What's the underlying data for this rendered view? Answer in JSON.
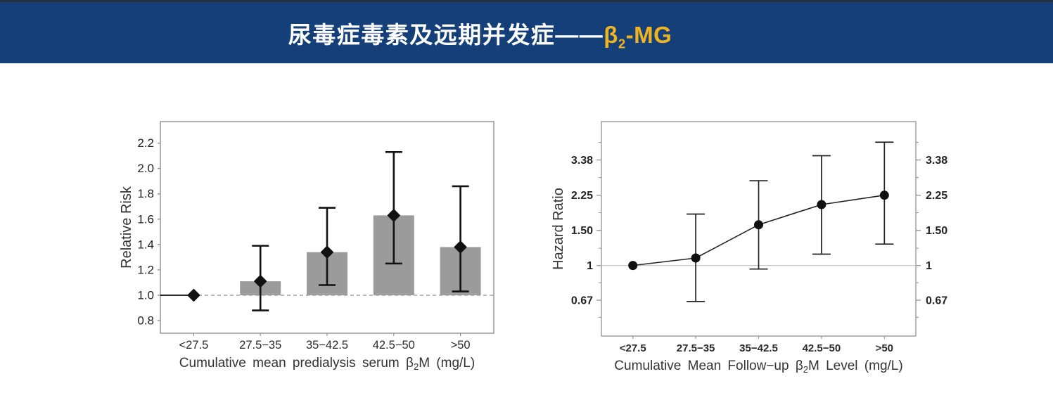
{
  "header": {
    "title_main": "尿毒症毒素及远期并发症——",
    "title_beta": "β",
    "title_beta_sub": "2",
    "title_rest": "-MG",
    "bg_color": "#153f78",
    "highlight_color": "#f0b41e",
    "title_color": "#ffffff"
  },
  "chart_data": [
    {
      "type": "bar",
      "name": "relative-risk-vs-predialysis-b2m",
      "ylabel": "Relative Risk",
      "xlabel_parts": [
        "Cumulative mean predialysis serum β",
        "2",
        "M (mg/L)"
      ],
      "categories": [
        "<27.5",
        "27.5−35",
        "35−42.5",
        "42.5−50",
        ">50"
      ],
      "values": [
        1.0,
        1.11,
        1.34,
        1.63,
        1.38
      ],
      "ci_low": [
        null,
        0.88,
        1.08,
        1.25,
        1.03
      ],
      "ci_high": [
        null,
        1.39,
        1.69,
        2.13,
        1.86
      ],
      "baseline": 1.0,
      "scale": "linear",
      "ylim": [
        0.7,
        2.37
      ],
      "yticks": [
        0.8,
        1.0,
        1.2,
        1.4,
        1.6,
        1.8,
        2.0,
        2.2
      ],
      "ytick_labels": [
        "0.8",
        "1.0",
        "1.2",
        "1.4",
        "1.6",
        "1.8",
        "2.0",
        "2.2"
      ],
      "reference_line": {
        "value": 1.0,
        "style": "dashed"
      },
      "marker": "diamond",
      "bar_color": "#9b9b9b",
      "error_color": "#111111",
      "frame_color": "#8f8f8f",
      "grid": false,
      "legend": "none"
    },
    {
      "type": "line",
      "name": "hazard-ratio-vs-followup-b2m",
      "ylabel": "Hazard Ratio",
      "xlabel_parts": [
        "Cumulative Mean Follow−up β",
        "2",
        "M Level (mg/L)"
      ],
      "categories": [
        "<27.5",
        "27.5−35",
        "35−42.5",
        "42.5−50",
        ">50"
      ],
      "values": [
        1.0,
        1.09,
        1.6,
        2.02,
        2.25
      ],
      "ci_low": [
        null,
        0.66,
        0.96,
        1.14,
        1.28
      ],
      "ci_high": [
        null,
        1.81,
        2.66,
        3.55,
        4.15
      ],
      "baseline": 1.0,
      "scale": "log",
      "ylim": [
        0.443,
        5.26
      ],
      "yticks": [
        0.67,
        1,
        1.5,
        2.25,
        3.38
      ],
      "ytick_labels": [
        "0.67",
        "1",
        "1.50",
        "2.25",
        "3.38"
      ],
      "minor_ticks": [
        0.55,
        0.82,
        1.22,
        1.84,
        2.76,
        4.14
      ],
      "reference_line": {
        "value": 1.0,
        "style": "solid"
      },
      "marker": "circle",
      "line_color": "#222222",
      "error_color": "#222222",
      "frame_color": "#9a9a9a",
      "axis_labels_both_sides": true,
      "grid": false,
      "legend": "none"
    }
  ]
}
